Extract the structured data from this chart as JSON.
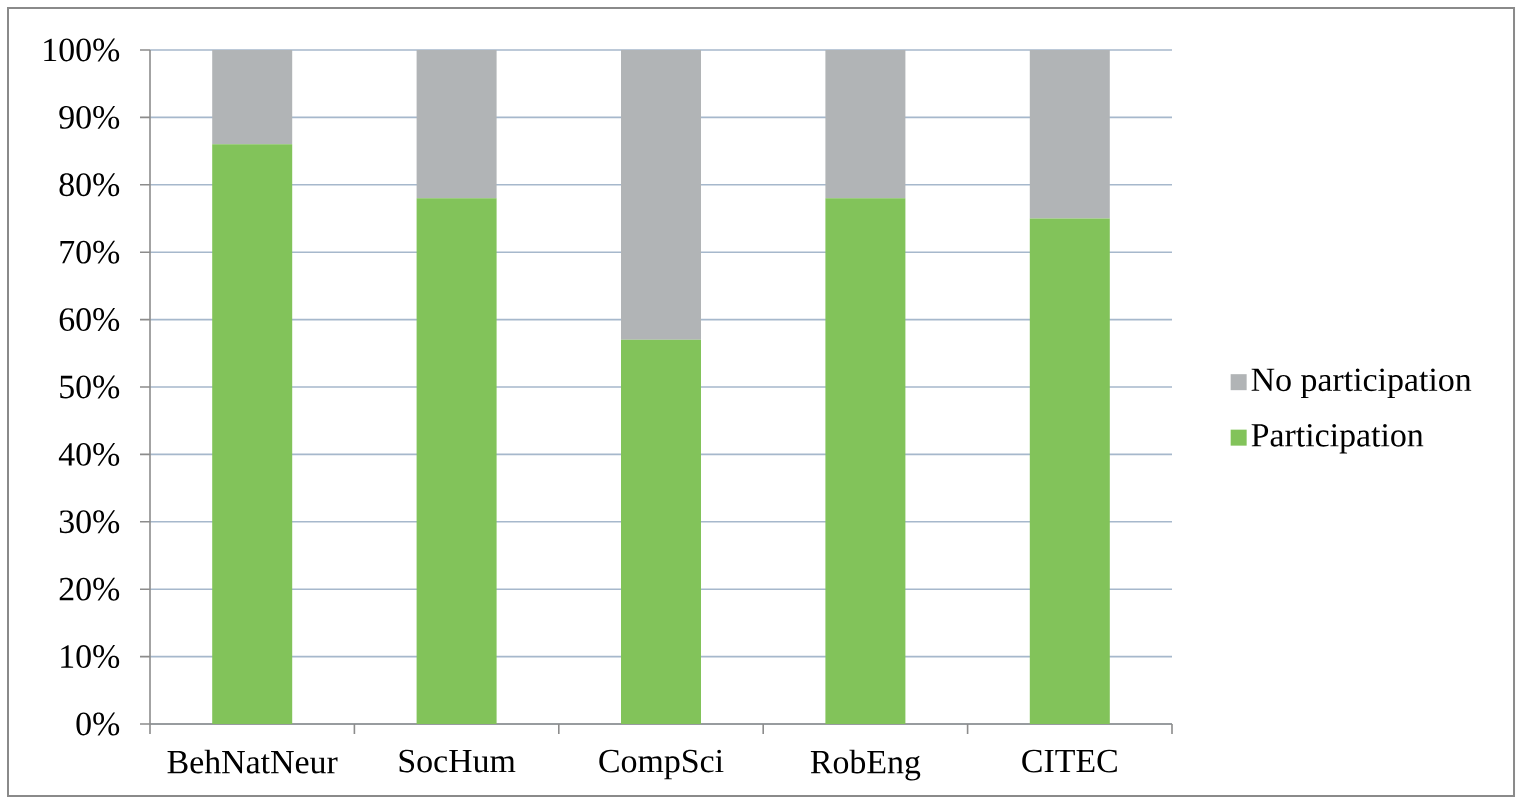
{
  "chart_data": {
    "type": "bar",
    "stacked": true,
    "categories": [
      "BehNatNeur",
      "SocHum",
      "CompSci",
      "RobEng",
      "CITEC"
    ],
    "series": [
      {
        "name": "Participation",
        "color": "#82c35a",
        "values": [
          86,
          78,
          57,
          78,
          75
        ]
      },
      {
        "name": "No participation",
        "color": "#b1b4b6",
        "values": [
          14,
          22,
          43,
          22,
          25
        ]
      }
    ],
    "ylim": [
      0,
      100
    ],
    "yticks": [
      {
        "value": 0,
        "label": "0%"
      },
      {
        "value": 10,
        "label": "10%"
      },
      {
        "value": 20,
        "label": "20%"
      },
      {
        "value": 30,
        "label": "30%"
      },
      {
        "value": 40,
        "label": "40%"
      },
      {
        "value": 50,
        "label": "50%"
      },
      {
        "value": 60,
        "label": "60%"
      },
      {
        "value": 70,
        "label": "70%"
      },
      {
        "value": 80,
        "label": "80%"
      },
      {
        "value": 90,
        "label": "90%"
      },
      {
        "value": 100,
        "label": "100%"
      }
    ],
    "grid": "y",
    "legend": "right"
  }
}
